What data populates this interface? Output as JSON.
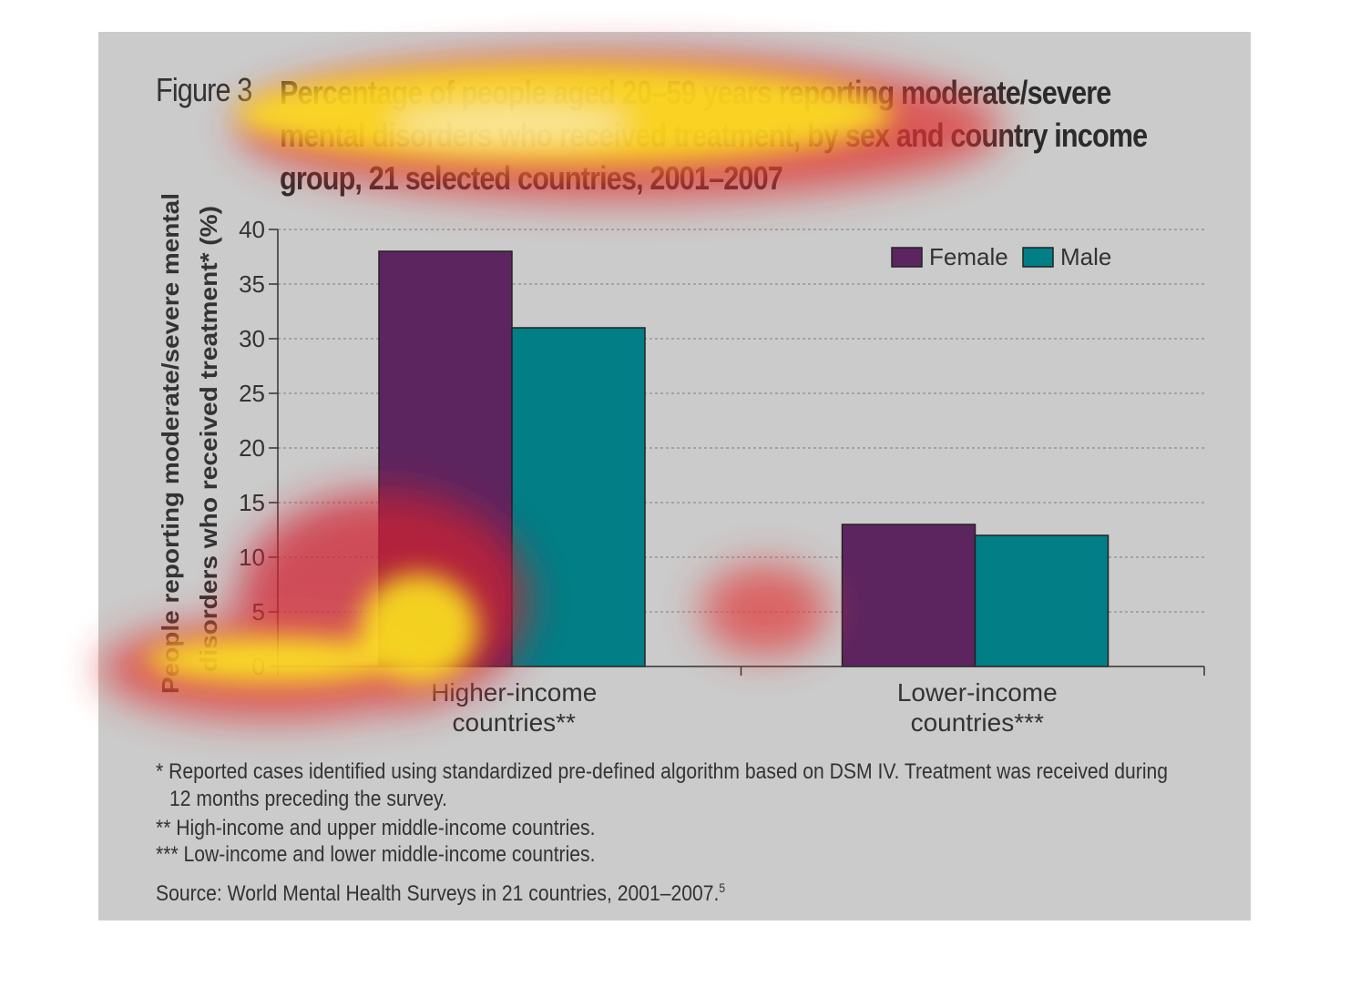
{
  "figure": {
    "label": "Figure 3",
    "title": "Percentage of people aged 20–59 years reporting moderate/severe mental disorders who received treatment, by sex and country income group, 21 selected countries, 2001–2007"
  },
  "chart_data": {
    "type": "bar",
    "title": "Percentage of people aged 20–59 years reporting moderate/severe mental disorders who received treatment, by sex and country income group, 21 selected countries, 2001–2007",
    "categories_lines": [
      [
        "Higher-income",
        "countries**"
      ],
      [
        "Lower-income",
        "countries***"
      ]
    ],
    "categories": [
      "Higher-income countries**",
      "Lower-income countries***"
    ],
    "series": [
      {
        "name": "Female",
        "values": [
          38,
          13
        ],
        "color": "#5c2560"
      },
      {
        "name": "Male",
        "values": [
          31,
          12
        ],
        "color": "#017e86"
      }
    ],
    "xlabel": "",
    "ylabel_lines": [
      "People reporting moderate/severe mental",
      "disorders who received treatment* (%)"
    ],
    "ylim": [
      0,
      40
    ],
    "yticks": [
      0,
      5,
      10,
      15,
      20,
      25,
      30,
      35,
      40
    ],
    "grid": true,
    "legend_position": "top-right"
  },
  "notes": {
    "footnote1_line1": "* Reported cases identified using standardized pre-defined algorithm based on DSM IV. Treatment was received during",
    "footnote1_line2": "12 months preceding the survey.",
    "footnote2": "** High-income and upper middle-income countries.",
    "footnote3": "*** Low-income and lower middle-income countries.",
    "source": "Source: World Mental Health Surveys in 21 countries, 2001–2007.",
    "source_ref": "5"
  },
  "colors": {
    "background_panel": "#cbcbcb",
    "female": "#5c2560",
    "male": "#017e86"
  }
}
